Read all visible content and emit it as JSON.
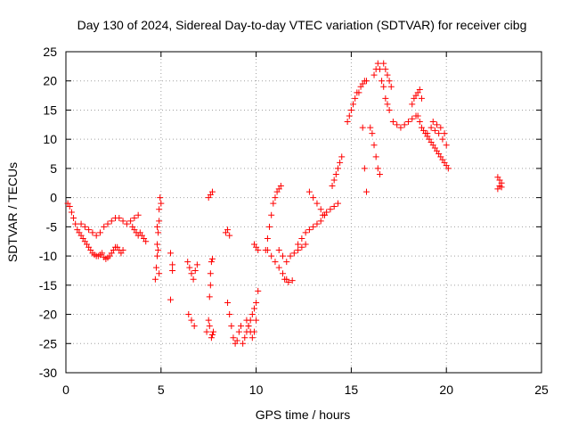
{
  "chart_data": {
    "type": "scatter",
    "title": "Day 130 of 2024, Sidereal Day-to-day VTEC variation (SDTVAR) for receiver cibg",
    "xlabel": "GPS time / hours",
    "ylabel": "SDTVAR / TECUs",
    "xlim": [
      0,
      25
    ],
    "ylim": [
      -30,
      25
    ],
    "x_ticks": [
      "0",
      "5",
      "10",
      "15",
      "20",
      "25"
    ],
    "y_ticks": [
      "-30",
      "-25",
      "-20",
      "-15",
      "-10",
      "-5",
      "0",
      "5",
      "10",
      "15",
      "20",
      "25"
    ],
    "grid": true,
    "legend": "none",
    "marker": "+",
    "color": "#ff0000",
    "series": [
      {
        "x": [
          0.1,
          0.2,
          0.3,
          0.4,
          0.5,
          0.6,
          0.7,
          0.8,
          0.9,
          1.0,
          1.1,
          1.2,
          1.3,
          1.4,
          1.5,
          1.6,
          1.7,
          1.8,
          1.9,
          2.0,
          2.1,
          2.2,
          2.3,
          2.4,
          2.5,
          2.6,
          2.7,
          2.8,
          2.9,
          3.0,
          0.8,
          1.0,
          1.2,
          1.4,
          1.6,
          1.8,
          2.0,
          2.2,
          2.4,
          2.6,
          2.8,
          3.0,
          3.2,
          3.4,
          3.6,
          3.8,
          3.5,
          3.6,
          3.7,
          3.8,
          3.9,
          4.0,
          4.1,
          4.2,
          4.7,
          4.75,
          4.8,
          4.8,
          4.85,
          4.9,
          4.9,
          4.95,
          5.0,
          4.8,
          4.85,
          4.9,
          5.5,
          5.6,
          5.6,
          5.5,
          6.4,
          6.5,
          6.6,
          6.7,
          6.8,
          6.9,
          6.45,
          6.6,
          6.75,
          7.4,
          7.5,
          7.55,
          7.6,
          7.6,
          7.65,
          7.7,
          7.5,
          7.6,
          7.7,
          7.55,
          7.65,
          7.7,
          7.75,
          8.4,
          8.5,
          8.6,
          8.5,
          8.6,
          8.7,
          8.8,
          8.9,
          9.0,
          9.1,
          9.2,
          9.3,
          9.4,
          9.5,
          9.6,
          9.7,
          9.8,
          9.9,
          10.0,
          10.1,
          9.5,
          9.6,
          9.7,
          9.8,
          9.9,
          10.0,
          9.9,
          10.0,
          10.1,
          10.5,
          10.6,
          10.7,
          10.8,
          10.9,
          11.0,
          11.1,
          11.2,
          11.3,
          10.6,
          10.8,
          11.0,
          11.2,
          11.4,
          11.6,
          11.2,
          11.4,
          11.6,
          11.8,
          12.0,
          12.2,
          12.4,
          12.6,
          11.5,
          11.7,
          11.9,
          12.2,
          12.4,
          12.6,
          12.8,
          13.0,
          13.2,
          13.4,
          13.6,
          12.8,
          13.0,
          13.2,
          13.4,
          13.6,
          13.5,
          13.7,
          13.9,
          14.1,
          14.3,
          14.0,
          14.1,
          14.2,
          14.3,
          14.4,
          14.5,
          14.8,
          14.9,
          15.0,
          15.1,
          15.2,
          15.3,
          15.4,
          15.5,
          15.6,
          15.7,
          15.8,
          15.6,
          15.7,
          15.8,
          16.0,
          16.1,
          16.2,
          16.3,
          16.4,
          16.5,
          16.2,
          16.3,
          16.4,
          16.5,
          16.6,
          16.7,
          16.8,
          16.9,
          17.0,
          16.7,
          16.8,
          16.9,
          17.0,
          17.1,
          17.2,
          17.4,
          17.6,
          17.8,
          18.0,
          18.2,
          18.4,
          18.2,
          18.3,
          18.4,
          18.5,
          18.6,
          18.7,
          18.5,
          18.6,
          18.7,
          18.8,
          18.9,
          19.0,
          19.1,
          19.2,
          19.3,
          19.4,
          19.5,
          19.6,
          19.7,
          19.8,
          19.9,
          20.0,
          20.1,
          19.0,
          19.2,
          19.4,
          19.6,
          19.8,
          20.0,
          19.3,
          19.5,
          19.7,
          19.9,
          22.7,
          22.8,
          22.9,
          22.7,
          22.8,
          22.9
        ],
        "y": [
          -1,
          -1.5,
          -2.5,
          -3.5,
          -4.5,
          -5.5,
          -6,
          -6.5,
          -7,
          -7.5,
          -8,
          -8.5,
          -9,
          -9.5,
          -9.8,
          -10,
          -10,
          -9.8,
          -9.5,
          -10.2,
          -10.5,
          -10.3,
          -10,
          -9.5,
          -9,
          -8.5,
          -8.5,
          -9,
          -9.5,
          -9,
          -4.5,
          -5,
          -5.5,
          -6,
          -6.5,
          -6,
          -5,
          -4.5,
          -4,
          -3.5,
          -3.5,
          -4,
          -4.5,
          -4,
          -3.5,
          -3,
          -5,
          -5.5,
          -6,
          -6.5,
          -6,
          -6.5,
          -7,
          -7.5,
          -14,
          -12,
          -10,
          -8,
          -6,
          -4,
          -2,
          0,
          -1,
          -5,
          -9,
          -13,
          -9.5,
          -11.5,
          -12.5,
          -17.5,
          -11,
          -12,
          -13,
          -14,
          -12.5,
          -11.5,
          -20,
          -21,
          -22,
          -23,
          -21,
          -17,
          -15,
          -13,
          -11,
          -10.5,
          0,
          0.5,
          1,
          -22,
          -24,
          -23.5,
          -23,
          -6,
          -5.5,
          -6.5,
          -18,
          -20,
          -22,
          -24,
          -25,
          -24.5,
          -23,
          -22,
          -25,
          -24,
          -23,
          -22,
          -21,
          -20,
          -19,
          -18,
          -16,
          -21,
          -22,
          -23,
          -24,
          -23,
          -21,
          -8,
          -8.5,
          -9,
          -9,
          -7,
          -5,
          -3,
          -1,
          0,
          1,
          1.5,
          2,
          -9,
          -10,
          -11,
          -12,
          -13,
          -14,
          -9,
          -10,
          -11,
          -10,
          -9.5,
          -9,
          -8.5,
          -8,
          -14,
          -14.5,
          -14.2,
          -8,
          -7,
          -6,
          -5.5,
          -5,
          -4.5,
          -4,
          -3,
          1,
          0,
          -1,
          -2,
          -3,
          -3,
          -2.5,
          -2,
          -1.5,
          -1,
          2,
          3,
          4,
          5,
          6,
          7,
          13,
          14,
          15,
          16,
          17,
          18,
          18,
          19,
          19.5,
          20,
          20,
          12,
          5,
          1,
          12,
          11,
          9,
          7,
          5,
          4,
          21,
          22,
          23,
          22,
          20,
          19,
          17,
          16,
          15,
          23,
          22,
          21,
          20,
          19,
          13,
          12.5,
          12,
          12.5,
          13,
          13.5,
          14,
          16,
          17,
          17.5,
          18,
          18.5,
          17,
          14,
          13,
          12,
          11.5,
          11,
          10.5,
          10,
          9.5,
          9,
          8.5,
          8,
          7.5,
          7,
          6.5,
          6,
          5.5,
          5,
          11,
          12,
          11.5,
          11,
          10,
          9,
          13,
          12.5,
          12,
          11,
          3.5,
          3,
          2.5,
          1.5,
          2,
          1.8
        ]
      }
    ]
  }
}
